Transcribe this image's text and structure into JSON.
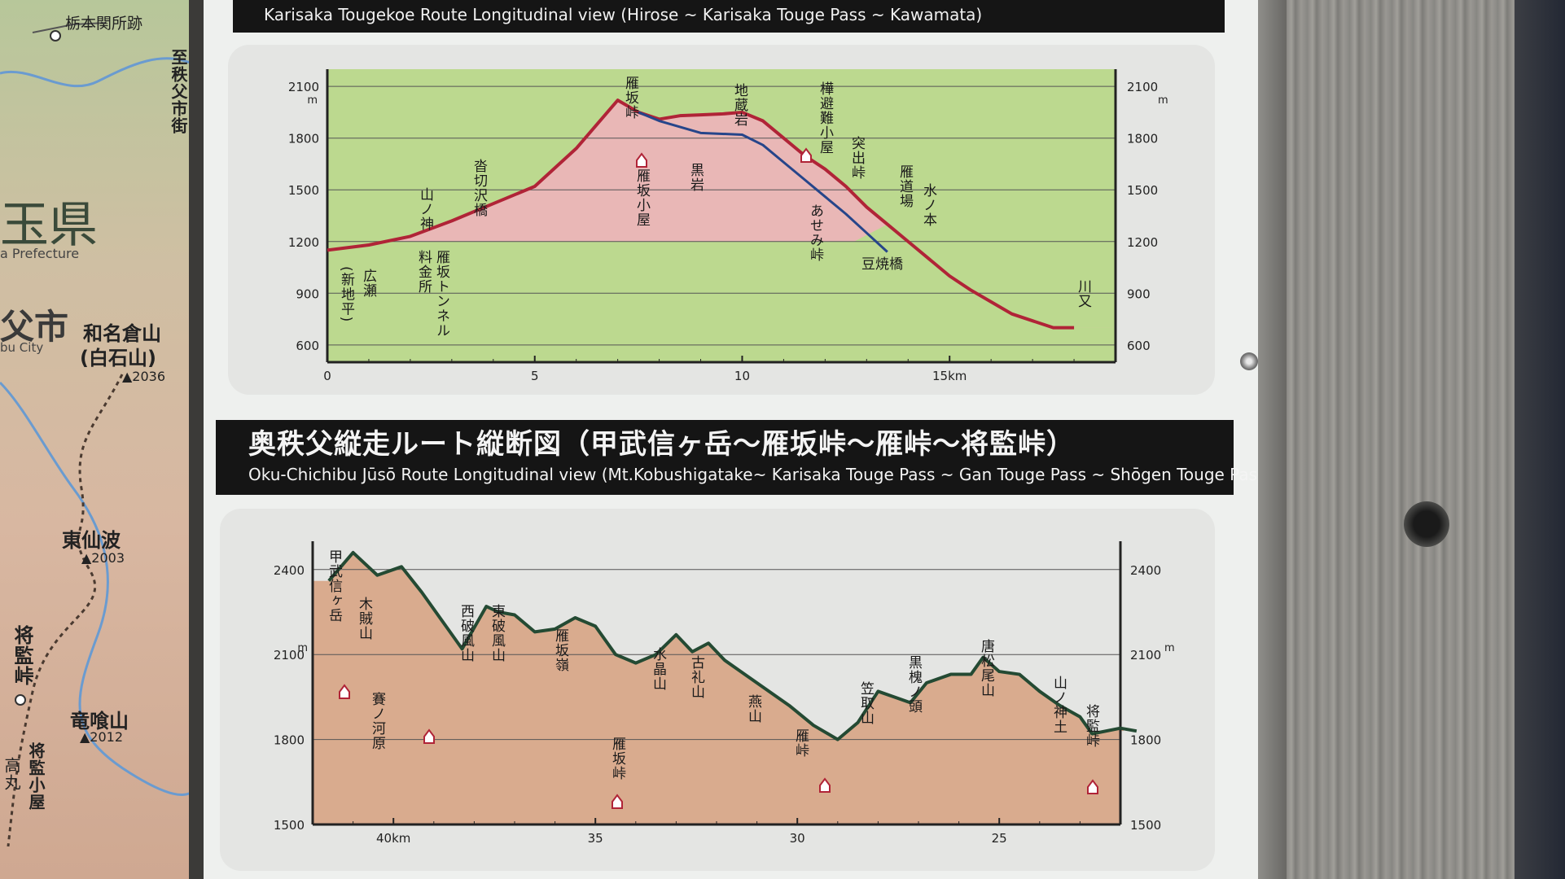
{
  "map": {
    "labels": {
      "site": "栃本関所跡",
      "to_city": "至秩父市街",
      "pref_jp": "玉県",
      "pref_en": "a Prefecture",
      "city_jp": "父市",
      "city_en": "bu City",
      "mt1_name": "和名倉山",
      "mt1_alt": "(白石山)",
      "mt1_height": "▲2036",
      "mt2_name": "東仙波",
      "mt2_height": "▲2003",
      "pass": "将監峠",
      "mt3_name": "竜喰山",
      "mt3_height": "▲2012",
      "hut": "将監小屋",
      "edge": "高丸"
    }
  },
  "top_chart": {
    "header": "Karisaka  Tougekoe Route Longitudinal view    (Hirose ~ Karisaka Touge Pass ~ Kawamata)",
    "unit": "m",
    "y_ticks": [
      "2100",
      "1800",
      "1500",
      "1200",
      "900",
      "600"
    ],
    "x_ticks": [
      "0",
      "5",
      "10",
      "15km"
    ],
    "place_labels": [
      "雁坂峠",
      "地蔵岩",
      "樺避難小屋",
      "突出峠",
      "黒岩",
      "雁坂小屋",
      "雁道場",
      "水ノ本",
      "あせみ峠",
      "豆焼橋",
      "沓切沢橋",
      "山ノ神",
      "料金所",
      "雁坂トンネル",
      "広瀬",
      "(新地平)",
      "川又"
    ]
  },
  "bottom_chart": {
    "header_jp": "奥秩父縦走ルート縦断図（甲武信ヶ岳～雁坂峠～雁峠～将監峠）",
    "header_en": "Oku-Chichibu Jūsō Route Longitudinal view   (Mt.Kobushigatake~ Karisaka Touge Pass ~ Gan Touge Pass ~ Shōgen Touge Pass)",
    "unit": "m",
    "y_ticks": [
      "2400",
      "2100",
      "1800",
      "1500"
    ],
    "x_ticks": [
      "40km",
      "35",
      "30",
      "25"
    ],
    "place_labels": [
      "甲武信ヶ岳",
      "木賊山",
      "賽ノ河原",
      "西破風山",
      "東破風山",
      "雁坂嶺",
      "雁坂峠",
      "水晶山",
      "古礼山",
      "燕山",
      "雁峠",
      "笠取山",
      "黒槐ノ頭",
      "唐松尾山",
      "山ノ神土",
      "将監峠"
    ]
  },
  "chart_data": [
    {
      "type": "area",
      "title": "Karisaka  Tougekoe Route Longitudinal view    (Hirose ~ Karisaka Touge Pass ~ Kawamata)",
      "xlabel": "km",
      "ylabel": "m",
      "xlim": [
        0,
        19
      ],
      "ylim": [
        500,
        2200
      ],
      "series": [
        {
          "color": "#b02437",
          "x": [
            0,
            1,
            2,
            3,
            4,
            5,
            6,
            7,
            7.5,
            8,
            8.5,
            9,
            9.5,
            10,
            10.5,
            11,
            11.5,
            12,
            12.5,
            13,
            13.5,
            14,
            14.5,
            15,
            15.5,
            16,
            16.5,
            17,
            17.5,
            18
          ],
          "y": [
            1150,
            1180,
            1230,
            1320,
            1420,
            1520,
            1740,
            2020,
            1950,
            1910,
            1930,
            1935,
            1940,
            1950,
            1900,
            1800,
            1700,
            1620,
            1520,
            1400,
            1300,
            1200,
            1100,
            1000,
            920,
            850,
            780,
            740,
            700,
            700
          ]
        },
        {
          "color": "#26458a",
          "x": [
            7.5,
            8,
            9,
            10,
            10.5,
            11,
            11.5,
            12,
            12.5,
            13,
            13.5
          ],
          "y": [
            1950,
            1900,
            1830,
            1820,
            1760,
            1660,
            1560,
            1460,
            1360,
            1250,
            1140
          ]
        }
      ]
    },
    {
      "type": "area",
      "title": "Oku-Chichibu Jūsō Route Longitudinal view   (Mt.Kobushigatake~ Karisaka Touge Pass ~ Gan Touge Pass ~ Shōgen Touge Pass)",
      "xlabel": "km",
      "ylabel": "m",
      "xlim": [
        22,
        42
      ],
      "ylim": [
        1500,
        2500
      ],
      "series": [
        {
          "color": "#244a33",
          "x": [
            41.6,
            41,
            40.4,
            39.8,
            39.3,
            38.7,
            38.3,
            37.7,
            37.4,
            37,
            36.5,
            36,
            35.5,
            35,
            34.5,
            34,
            33.5,
            33,
            32.6,
            32.2,
            31.8,
            31.4,
            30.8,
            30.2,
            29.6,
            29,
            28.5,
            28,
            27.6,
            27.2,
            26.8,
            26.2,
            25.7,
            25.4,
            25,
            24.5,
            24,
            23.5,
            23,
            22.7,
            22,
            21.6
          ],
          "y": [
            2360,
            2460,
            2380,
            2410,
            2320,
            2200,
            2120,
            2270,
            2250,
            2240,
            2180,
            2190,
            2230,
            2200,
            2100,
            2070,
            2100,
            2170,
            2110,
            2140,
            2080,
            2040,
            1980,
            1920,
            1850,
            1800,
            1860,
            1970,
            1950,
            1930,
            2000,
            2030,
            2030,
            2090,
            2040,
            2030,
            1970,
            1920,
            1880,
            1820,
            1840,
            1830
          ]
        }
      ]
    }
  ],
  "colors": {
    "top_red_line": "#b02437",
    "top_blue_line": "#26458a",
    "top_fill_upper": "#e9b7b6",
    "top_fill_lower": "#bcd98f",
    "bottom_line": "#244a33",
    "bottom_fill": "#d9ab8e",
    "header_bar": "#151515"
  }
}
